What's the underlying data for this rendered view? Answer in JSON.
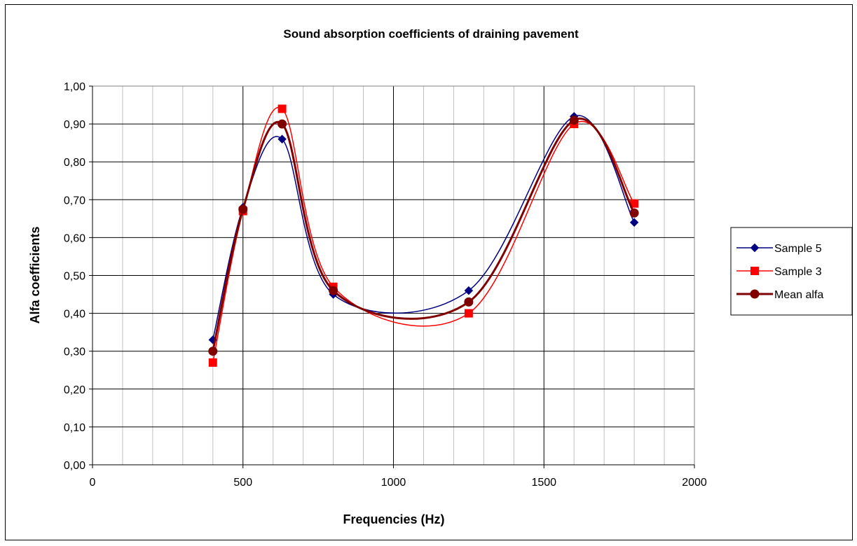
{
  "chart_data": {
    "type": "scatter",
    "title": "Sound absorption coefficients of draining pavement",
    "xlabel": "Frequencies (Hz)",
    "ylabel": "Alfa coefficients",
    "xlim": [
      0,
      2000
    ],
    "ylim": [
      0,
      1
    ],
    "x_ticks": [
      0,
      500,
      1000,
      1500,
      2000
    ],
    "x_tick_labels": [
      "0",
      "500",
      "1000",
      "1500",
      "2000"
    ],
    "x_minor_step": 100,
    "y_ticks": [
      0,
      0.1,
      0.2,
      0.3,
      0.4,
      0.5,
      0.6,
      0.7,
      0.8,
      0.9,
      1.0
    ],
    "y_tick_labels": [
      "0,00",
      "0,10",
      "0,20",
      "0,30",
      "0,40",
      "0,50",
      "0,60",
      "0,70",
      "0,80",
      "0,90",
      "1,00"
    ],
    "grid": true,
    "smoothed_lines": true,
    "legend_position": "right",
    "x": [
      400,
      500,
      630,
      800,
      1250,
      1600,
      1800
    ],
    "series": [
      {
        "name": "Sample 5",
        "color": "#000080",
        "marker": "diamond",
        "values": [
          0.33,
          0.68,
          0.86,
          0.45,
          0.46,
          0.92,
          0.64
        ]
      },
      {
        "name": "Sample 3",
        "color": "#ff0000",
        "marker": "square",
        "values": [
          0.27,
          0.67,
          0.94,
          0.47,
          0.4,
          0.9,
          0.69
        ]
      },
      {
        "name": "Mean alfa",
        "color": "#800000",
        "marker": "circle",
        "values": [
          0.3,
          0.675,
          0.9,
          0.46,
          0.43,
          0.91,
          0.665
        ]
      }
    ]
  }
}
